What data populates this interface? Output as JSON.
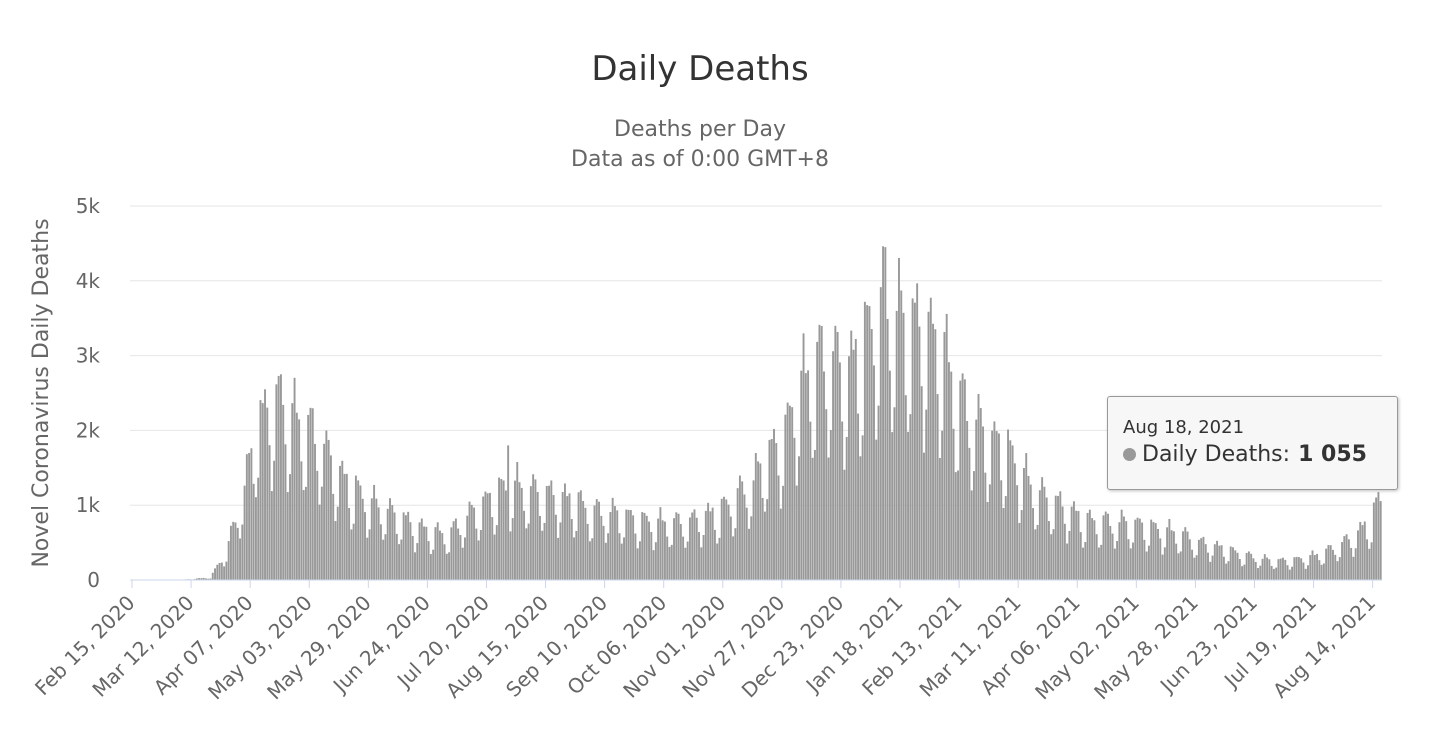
{
  "chart_data": {
    "type": "bar",
    "title": "Daily Deaths",
    "subtitle_lines": [
      "Deaths per Day",
      "Data as of 0:00 GMT+8"
    ],
    "ylabel": "Novel Coronavirus Daily Deaths",
    "ylim": [
      0,
      5000
    ],
    "yticks": [
      0,
      1000,
      2000,
      3000,
      4000,
      5000
    ],
    "ytick_labels": [
      "0",
      "1k",
      "2k",
      "3k",
      "4k",
      "5k"
    ],
    "x_start": "Feb 15, 2020",
    "x_end": "Aug 18, 2021",
    "num_days": 551,
    "xtick_labels": [
      "Feb 15, 2020",
      "Mar 12, 2020",
      "Apr 07, 2020",
      "May 03, 2020",
      "May 29, 2020",
      "Jun 24, 2020",
      "Jul 20, 2020",
      "Aug 15, 2020",
      "Sep 10, 2020",
      "Oct 06, 2020",
      "Nov 01, 2020",
      "Nov 27, 2020",
      "Dec 23, 2020",
      "Jan 18, 2021",
      "Feb 13, 2021",
      "Mar 11, 2021",
      "Apr 06, 2021",
      "May 02, 2021",
      "May 28, 2021",
      "Jun 23, 2021",
      "Jul 19, 2021",
      "Aug 14, 2021"
    ],
    "xtick_interval_days": 26,
    "series": [
      {
        "name": "Daily Deaths",
        "color": "#999999",
        "weekly_averages": [
          {
            "date": "Feb 15, 2020",
            "value": 0
          },
          {
            "date": "Mar 07, 2020",
            "value": 0
          },
          {
            "date": "Mar 21, 2020",
            "value": 30
          },
          {
            "date": "Mar 28, 2020",
            "value": 350
          },
          {
            "date": "Apr 04, 2020",
            "value": 1000
          },
          {
            "date": "Apr 11, 2020",
            "value": 1900
          },
          {
            "date": "Apr 18, 2020",
            "value": 2150
          },
          {
            "date": "Apr 25, 2020",
            "value": 2000
          },
          {
            "date": "May 02, 2020",
            "value": 1850
          },
          {
            "date": "May 09, 2020",
            "value": 1650
          },
          {
            "date": "May 16, 2020",
            "value": 1300
          },
          {
            "date": "May 23, 2020",
            "value": 1100
          },
          {
            "date": "May 30, 2020",
            "value": 950
          },
          {
            "date": "Jun 06, 2020",
            "value": 850
          },
          {
            "date": "Jun 13, 2020",
            "value": 750
          },
          {
            "date": "Jun 20, 2020",
            "value": 650
          },
          {
            "date": "Jun 27, 2020",
            "value": 580
          },
          {
            "date": "Jul 04, 2020",
            "value": 550
          },
          {
            "date": "Jul 11, 2020",
            "value": 750
          },
          {
            "date": "Jul 18, 2020",
            "value": 900
          },
          {
            "date": "Jul 25, 2020",
            "value": 1050
          },
          {
            "date": "Aug 01, 2020",
            "value": 1150
          },
          {
            "date": "Aug 08, 2020",
            "value": 1080
          },
          {
            "date": "Aug 15, 2020",
            "value": 1050
          },
          {
            "date": "Aug 22, 2020",
            "value": 1000
          },
          {
            "date": "Aug 29, 2020",
            "value": 950
          },
          {
            "date": "Sep 05, 2020",
            "value": 820
          },
          {
            "date": "Sep 12, 2020",
            "value": 830
          },
          {
            "date": "Sep 19, 2020",
            "value": 780
          },
          {
            "date": "Sep 26, 2020",
            "value": 720
          },
          {
            "date": "Oct 03, 2020",
            "value": 700
          },
          {
            "date": "Oct 10, 2020",
            "value": 690
          },
          {
            "date": "Oct 17, 2020",
            "value": 700
          },
          {
            "date": "Oct 24, 2020",
            "value": 780
          },
          {
            "date": "Oct 31, 2020",
            "value": 820
          },
          {
            "date": "Nov 07, 2020",
            "value": 1000
          },
          {
            "date": "Nov 14, 2020",
            "value": 1150
          },
          {
            "date": "Nov 21, 2020",
            "value": 1500
          },
          {
            "date": "Nov 28, 2020",
            "value": 1700
          },
          {
            "date": "Dec 05, 2020",
            "value": 2300
          },
          {
            "date": "Dec 12, 2020",
            "value": 2600
          },
          {
            "date": "Dec 19, 2020",
            "value": 2700
          },
          {
            "date": "Dec 26, 2020",
            "value": 2500
          },
          {
            "date": "Jan 02, 2021",
            "value": 2800
          },
          {
            "date": "Jan 09, 2021",
            "value": 3300
          },
          {
            "date": "Jan 16, 2021",
            "value": 3200
          },
          {
            "date": "Jan 23, 2021",
            "value": 3100
          },
          {
            "date": "Jan 30, 2021",
            "value": 3000
          },
          {
            "date": "Feb 06, 2021",
            "value": 2800
          },
          {
            "date": "Feb 13, 2021",
            "value": 2200
          },
          {
            "date": "Feb 20, 2021",
            "value": 1950
          },
          {
            "date": "Feb 27, 2021",
            "value": 1700
          },
          {
            "date": "Mar 06, 2021",
            "value": 1600
          },
          {
            "date": "Mar 13, 2021",
            "value": 1300
          },
          {
            "date": "Mar 20, 2021",
            "value": 1050
          },
          {
            "date": "Mar 27, 2021",
            "value": 950
          },
          {
            "date": "Apr 03, 2021",
            "value": 850
          },
          {
            "date": "Apr 10, 2021",
            "value": 720
          },
          {
            "date": "Apr 17, 2021",
            "value": 700
          },
          {
            "date": "Apr 24, 2021",
            "value": 700
          },
          {
            "date": "May 01, 2021",
            "value": 680
          },
          {
            "date": "May 08, 2021",
            "value": 640
          },
          {
            "date": "May 15, 2021",
            "value": 600
          },
          {
            "date": "May 22, 2021",
            "value": 560
          },
          {
            "date": "May 29, 2021",
            "value": 460
          },
          {
            "date": "Jun 05, 2021",
            "value": 420
          },
          {
            "date": "Jun 12, 2021",
            "value": 360
          },
          {
            "date": "Jun 19, 2021",
            "value": 300
          },
          {
            "date": "Jun 26, 2021",
            "value": 260
          },
          {
            "date": "Jul 03, 2021",
            "value": 230
          },
          {
            "date": "Jul 10, 2021",
            "value": 240
          },
          {
            "date": "Jul 17, 2021",
            "value": 270
          },
          {
            "date": "Jul 24, 2021",
            "value": 330
          },
          {
            "date": "Jul 31, 2021",
            "value": 420
          },
          {
            "date": "Aug 07, 2021",
            "value": 550
          },
          {
            "date": "Aug 14, 2021",
            "value": 720
          },
          {
            "date": "Aug 18, 2021",
            "value": 1055
          }
        ],
        "weekly_pattern": [
          0.72,
          1.2,
          1.3,
          1.22,
          1.12,
          0.85,
          0.6
        ],
        "peaks": [
          {
            "date": "Apr 21, 2020",
            "value": 2750
          },
          {
            "date": "Jul 30, 2020",
            "value": 1800
          },
          {
            "date": "Jan 12, 2021",
            "value": 4450
          }
        ]
      }
    ],
    "tooltip": {
      "date": "Aug 18, 2021",
      "series_name": "Daily Deaths",
      "value": "1 055"
    }
  }
}
